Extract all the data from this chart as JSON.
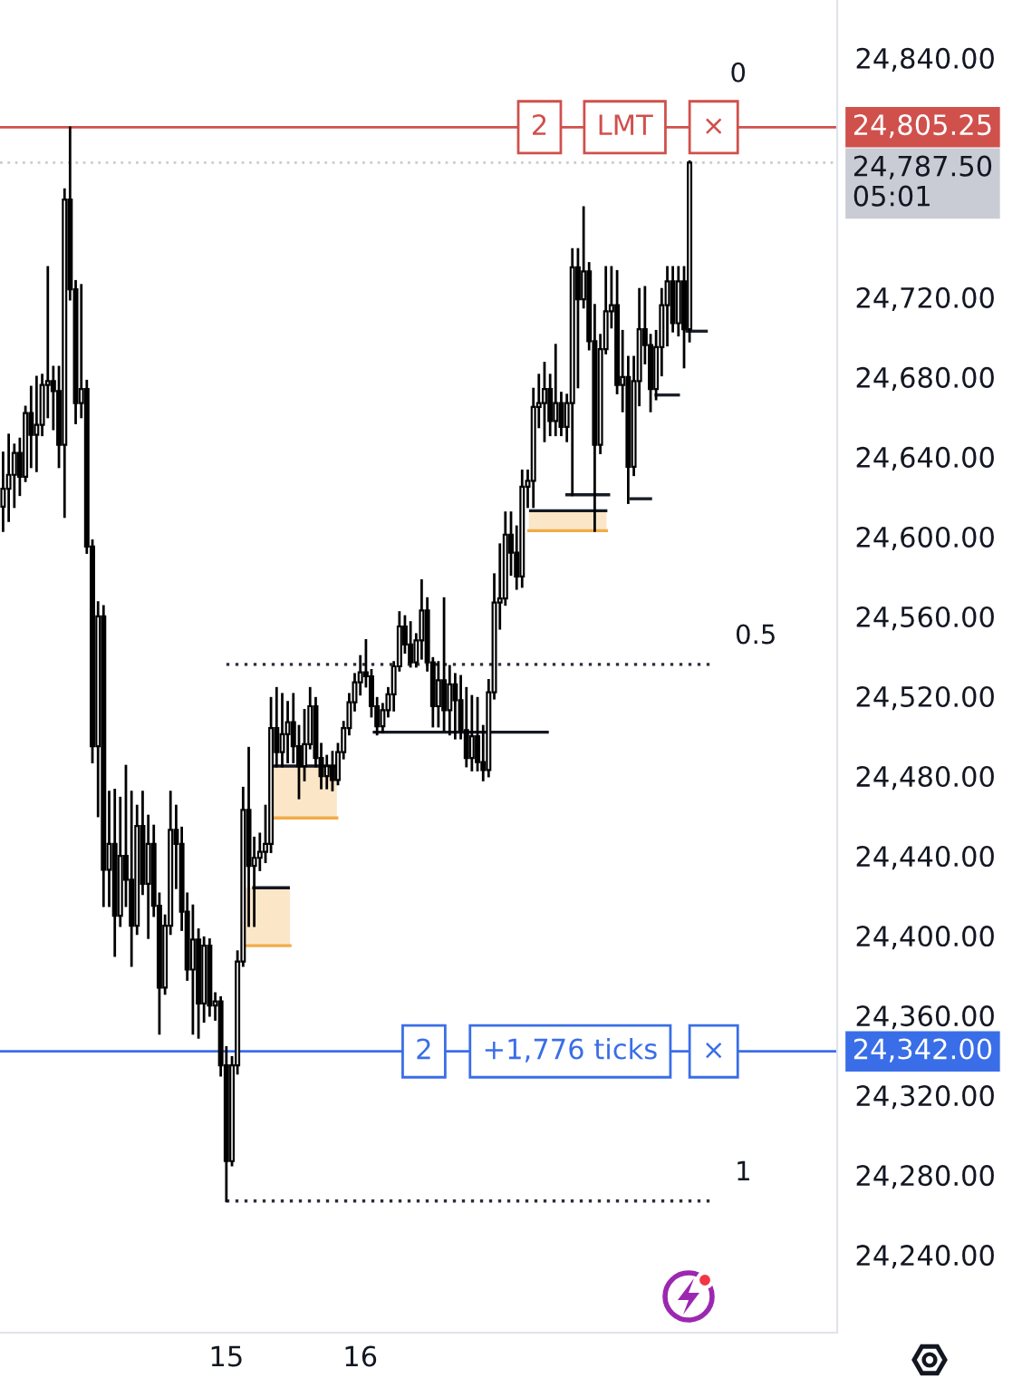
{
  "chart_data": {
    "type": "candlestick",
    "x": [
      13.333,
      13.375,
      13.417,
      13.458,
      13.5,
      13.542,
      13.583,
      13.625,
      13.667,
      13.708,
      13.75,
      13.792,
      13.833,
      13.875,
      13.917,
      13.958,
      14.0,
      14.042,
      14.083,
      14.125,
      14.167,
      14.208,
      14.25,
      14.292,
      14.333,
      14.375,
      14.417,
      14.458,
      14.5,
      14.542,
      14.583,
      14.625,
      14.667,
      14.708,
      14.75,
      14.792,
      14.833,
      14.875,
      14.917,
      14.958,
      15.0,
      15.042,
      15.083,
      15.125,
      15.167,
      15.208,
      15.25,
      15.292,
      15.333,
      15.375,
      15.417,
      15.458,
      15.5,
      15.542,
      15.583,
      15.625,
      15.667,
      15.708,
      15.75,
      15.792,
      15.833,
      15.875,
      15.917,
      15.958,
      16.0,
      16.042,
      16.083,
      16.125,
      16.167,
      16.208,
      16.25,
      16.292,
      16.333,
      16.375,
      16.417,
      16.458,
      16.5,
      16.542,
      16.583,
      16.625,
      16.667,
      16.708,
      16.75,
      16.792,
      16.833,
      16.875,
      16.917,
      16.958,
      17.0,
      17.042,
      17.083,
      17.125,
      17.167,
      17.208,
      17.25,
      17.292,
      17.333,
      17.375,
      17.417,
      17.458,
      17.5,
      17.542,
      17.583,
      17.625,
      17.667,
      17.708,
      17.75,
      17.792,
      17.833,
      17.875,
      17.917,
      17.958,
      18.0,
      18.042,
      18.083,
      18.125,
      18.167,
      18.208,
      18.25,
      18.292,
      18.333,
      18.375,
      18.417,
      18.458
    ],
    "ohlc": [
      [
        24615,
        24642,
        24603,
        24624
      ],
      [
        24624,
        24651,
        24608,
        24631
      ],
      [
        24631,
        24646,
        24615,
        24642
      ],
      [
        24642,
        24649,
        24621,
        24630
      ],
      [
        24630,
        24665,
        24628,
        24662
      ],
      [
        24662,
        24675,
        24635,
        24651
      ],
      [
        24651,
        24680,
        24633,
        24656
      ],
      [
        24656,
        24681,
        24651,
        24676
      ],
      [
        24676,
        24735,
        24660,
        24678
      ],
      [
        24678,
        24685,
        24654,
        24673
      ],
      [
        24673,
        24685,
        24635,
        24646
      ],
      [
        24646,
        24774,
        24610,
        24769
      ],
      [
        24769,
        24805,
        24719,
        24724
      ],
      [
        24724,
        24728,
        24657,
        24667
      ],
      [
        24667,
        24726,
        24660,
        24674
      ],
      [
        24674,
        24678,
        24592,
        24595
      ],
      [
        24595,
        24598,
        24487,
        24495
      ],
      [
        24495,
        24567,
        24460,
        24560
      ],
      [
        24560,
        24565,
        24415,
        24433
      ],
      [
        24433,
        24472,
        24415,
        24446
      ],
      [
        24446,
        24473,
        24390,
        24410
      ],
      [
        24410,
        24469,
        24405,
        24440
      ],
      [
        24440,
        24485,
        24415,
        24428
      ],
      [
        24428,
        24472,
        24385,
        24405
      ],
      [
        24405,
        24465,
        24401,
        24455
      ],
      [
        24455,
        24472,
        24421,
        24426
      ],
      [
        24426,
        24460,
        24399,
        24446
      ],
      [
        24446,
        24455,
        24410,
        24415
      ],
      [
        24415,
        24421,
        24351,
        24374
      ],
      [
        24374,
        24410,
        24371,
        24405
      ],
      [
        24405,
        24472,
        24401,
        24453
      ],
      [
        24453,
        24465,
        24424,
        24446
      ],
      [
        24446,
        24454,
        24403,
        24412
      ],
      [
        24412,
        24421,
        24378,
        24383
      ],
      [
        24383,
        24415,
        24351,
        24398
      ],
      [
        24398,
        24403,
        24349,
        24366
      ],
      [
        24366,
        24399,
        24357,
        24395
      ],
      [
        24395,
        24398,
        24360,
        24365
      ],
      [
        24365,
        24371,
        24358,
        24367
      ],
      [
        24367,
        24369,
        24330,
        24335
      ],
      [
        24335,
        24344,
        24267,
        24287
      ],
      [
        24287,
        24339,
        24285,
        24335
      ],
      [
        24335,
        24392,
        24331,
        24387
      ],
      [
        24387,
        24474,
        24385,
        24463
      ],
      [
        24463,
        24494,
        24405,
        24435
      ],
      [
        24435,
        24449,
        24405,
        24439
      ],
      [
        24439,
        24451,
        24433,
        24442
      ],
      [
        24442,
        24465,
        24437,
        24446
      ],
      [
        24446,
        24519,
        24442,
        24504
      ],
      [
        24504,
        24524,
        24485,
        24492
      ],
      [
        24492,
        24521,
        24485,
        24501
      ],
      [
        24501,
        24517,
        24487,
        24507
      ],
      [
        24507,
        24521,
        24487,
        24495
      ],
      [
        24495,
        24505,
        24469,
        24485
      ],
      [
        24485,
        24513,
        24478,
        24496
      ],
      [
        24496,
        24524,
        24494,
        24515
      ],
      [
        24515,
        24519,
        24485,
        24489
      ],
      [
        24489,
        24496,
        24474,
        24480
      ],
      [
        24480,
        24490,
        24474,
        24485
      ],
      [
        24485,
        24492,
        24473,
        24478
      ],
      [
        24478,
        24496,
        24476,
        24492
      ],
      [
        24492,
        24507,
        24489,
        24504
      ],
      [
        24504,
        24521,
        24501,
        24517
      ],
      [
        24517,
        24531,
        24513,
        24527
      ],
      [
        24527,
        24540,
        24521,
        24532
      ],
      [
        24532,
        24548,
        24525,
        24530
      ],
      [
        24530,
        24533,
        24510,
        24515
      ],
      [
        24515,
        24519,
        24501,
        24505
      ],
      [
        24505,
        24516,
        24502,
        24513
      ],
      [
        24513,
        24524,
        24510,
        24521
      ],
      [
        24521,
        24537,
        24513,
        24535
      ],
      [
        24535,
        24562,
        24533,
        24555
      ],
      [
        24555,
        24560,
        24542,
        24546
      ],
      [
        24546,
        24557,
        24535,
        24537
      ],
      [
        24537,
        24551,
        24535,
        24548
      ],
      [
        24548,
        24578,
        24539,
        24563
      ],
      [
        24563,
        24569,
        24533,
        24537
      ],
      [
        24537,
        24539,
        24505,
        24515
      ],
      [
        24515,
        24537,
        24505,
        24528
      ],
      [
        24528,
        24569,
        24503,
        24513
      ],
      [
        24513,
        24535,
        24501,
        24526
      ],
      [
        24526,
        24531,
        24499,
        24518
      ],
      [
        24518,
        24530,
        24499,
        24503
      ],
      [
        24503,
        24524,
        24485,
        24489
      ],
      [
        24489,
        24520,
        24483,
        24500
      ],
      [
        24500,
        24519,
        24483,
        24487
      ],
      [
        24487,
        24505,
        24478,
        24483
      ],
      [
        24483,
        24528,
        24480,
        24522
      ],
      [
        24522,
        24581,
        24519,
        24567
      ],
      [
        24567,
        24596,
        24554,
        24569
      ],
      [
        24569,
        24612,
        24566,
        24601
      ],
      [
        24601,
        24612,
        24581,
        24592
      ],
      [
        24592,
        24605,
        24574,
        24580
      ],
      [
        24580,
        24633,
        24575,
        24625
      ],
      [
        24625,
        24633,
        24615,
        24628
      ],
      [
        24628,
        24674,
        24615,
        24665
      ],
      [
        24665,
        24681,
        24655,
        24667
      ],
      [
        24667,
        24687,
        24648,
        24674
      ],
      [
        24674,
        24681,
        24651,
        24658
      ],
      [
        24658,
        24696,
        24651,
        24667
      ],
      [
        24667,
        24672,
        24651,
        24655
      ],
      [
        24655,
        24671,
        24648,
        24667
      ],
      [
        24667,
        24744,
        24621,
        24735
      ],
      [
        24735,
        24744,
        24675,
        24719
      ],
      [
        24719,
        24765,
        24715,
        24733
      ],
      [
        24733,
        24737,
        24694,
        24698
      ],
      [
        24698,
        24716,
        24603,
        24646
      ],
      [
        24646,
        24701,
        24642,
        24694
      ],
      [
        24694,
        24735,
        24692,
        24713
      ],
      [
        24713,
        24735,
        24705,
        24716
      ],
      [
        24716,
        24733,
        24672,
        24676
      ],
      [
        24676,
        24703,
        24663,
        24680
      ],
      [
        24680,
        24690,
        24617,
        24635
      ],
      [
        24635,
        24690,
        24631,
        24678
      ],
      [
        24678,
        24724,
        24666,
        24704
      ],
      [
        24704,
        24725,
        24687,
        24696
      ],
      [
        24696,
        24701,
        24663,
        24674
      ],
      [
        24674,
        24703,
        24669,
        24695
      ],
      [
        24695,
        24724,
        24681,
        24716
      ],
      [
        24716,
        24735,
        24696,
        24728
      ],
      [
        24728,
        24735,
        24703,
        24707
      ],
      [
        24707,
        24735,
        24701,
        24728
      ],
      [
        24728,
        24735,
        24685,
        24704
      ],
      [
        24704,
        24788,
        24698,
        24787.5
      ]
    ],
    "color": "#000000",
    "xlim": [
      13.31,
      19.56
    ],
    "xticks": [
      15,
      16
    ],
    "ylim": [
      24201,
      24869
    ],
    "yticks": [
      {
        "value": 24240,
        "label": "24,240.00"
      },
      {
        "value": 24280,
        "label": "24,280.00"
      },
      {
        "value": 24320,
        "label": "24,320.00"
      },
      {
        "value": 24360,
        "label": "24,360.00"
      },
      {
        "value": 24400,
        "label": "24,400.00"
      },
      {
        "value": 24440,
        "label": "24,440.00"
      },
      {
        "value": 24480,
        "label": "24,480.00"
      },
      {
        "value": 24520,
        "label": "24,520.00"
      },
      {
        "value": 24560,
        "label": "24,560.00"
      },
      {
        "value": 24600,
        "label": "24,600.00"
      },
      {
        "value": 24640,
        "label": "24,640.00"
      },
      {
        "value": 24680,
        "label": "24,680.00"
      },
      {
        "value": 24720,
        "label": "24,720.00"
      },
      {
        "value": 24840,
        "label": "24,840.00"
      }
    ],
    "series": [
      {
        "type": "line",
        "x": [
          15.121,
          15.475
        ],
        "values": [
          24395,
          24395
        ],
        "lower": [
          24395,
          24395
        ],
        "upper": [
          24424,
          24424
        ],
        "color": "#f2ac48",
        "line_style": "solid"
      },
      {
        "type": "line",
        "x": [
          15.338,
          15.825
        ],
        "values": [
          24459,
          24459
        ],
        "lower": [
          24459,
          24459
        ],
        "upper": [
          24485,
          24485
        ],
        "color": "#f2ab47",
        "line_style": "solid"
      },
      {
        "type": "line",
        "x": [
          17.258,
          17.838
        ],
        "values": [
          24603,
          24603
        ],
        "lower": [
          24603,
          24603
        ],
        "upper": [
          24613,
          24613
        ],
        "color": "#f1ac48",
        "line_style": "solid"
      },
      {
        "type": "line",
        "x": [
          15.204,
          15.463
        ],
        "values": [
          24424,
          24424
        ],
        "color": "#131722",
        "line_style": "solid"
      },
      {
        "type": "line",
        "x": [
          15.354,
          15.813
        ],
        "values": [
          24485,
          24485
        ],
        "color": "#141823",
        "line_style": "solid"
      },
      {
        "type": "line",
        "x": [
          16.104,
          17.396
        ],
        "values": [
          24502,
          24502
        ],
        "color": "#151924",
        "line_style": "solid"
      },
      {
        "type": "line",
        "x": [
          17.271,
          17.833
        ],
        "values": [
          24613,
          24613
        ],
        "color": "#161a25",
        "line_style": "solid"
      },
      {
        "type": "line",
        "x": [
          17.542,
          17.854
        ],
        "values": [
          24621,
          24621
        ],
        "color": "#171b26",
        "line_style": "solid"
      },
      {
        "type": "line",
        "x": [
          18.021,
          18.167
        ],
        "values": [
          24619,
          24619
        ],
        "color": "#181c27",
        "line_style": "solid"
      },
      {
        "type": "line",
        "x": [
          18.208,
          18.375
        ],
        "values": [
          24671,
          24671
        ],
        "color": "#191d28",
        "line_style": "solid"
      },
      {
        "type": "line",
        "x": [
          18.438,
          18.583
        ],
        "values": [
          24703,
          24703
        ],
        "color": "#1a1e29",
        "line_style": "solid"
      },
      {
        "type": "line",
        "name": "0.5",
        "x": [
          15,
          18.608
        ],
        "values": [
          24536,
          24536
        ],
        "color": "#2a2e39",
        "line_style": "dotted"
      },
      {
        "type": "line",
        "name": "1",
        "x": [
          15,
          18.608
        ],
        "values": [
          24267,
          24267
        ],
        "color": "#2b2f3a",
        "line_style": "dotted"
      }
    ],
    "ref_lines": [
      {
        "axis": "y",
        "value": 24805.25,
        "label": "24,805.25",
        "color": "#d0504c",
        "line_style": "solid"
      },
      {
        "axis": "y",
        "value": 24787.5,
        "label": "24,787.50\n05:01",
        "color": "#c9ccd4",
        "line_style": "dotted"
      },
      {
        "axis": "y",
        "value": 24342,
        "label": "24,342.00",
        "color": "#3a6ee8",
        "line_style": "solid"
      }
    ],
    "annotations": [
      {
        "text": "2",
        "x": 17.338,
        "y": 24805.25
      },
      {
        "text": "LMT",
        "x": 17.975,
        "y": 24805.25
      },
      {
        "text": "×",
        "x": 18.638,
        "y": 24805.25
      },
      {
        "text": "0",
        "x": 18.608,
        "y": 24805
      },
      {
        "text": "2",
        "x": 16.475,
        "y": 24342
      },
      {
        "text": "+1,776 ticks",
        "x": 17.567,
        "y": 24342
      },
      {
        "text": "×",
        "x": 18.638,
        "y": 24342
      }
    ]
  }
}
